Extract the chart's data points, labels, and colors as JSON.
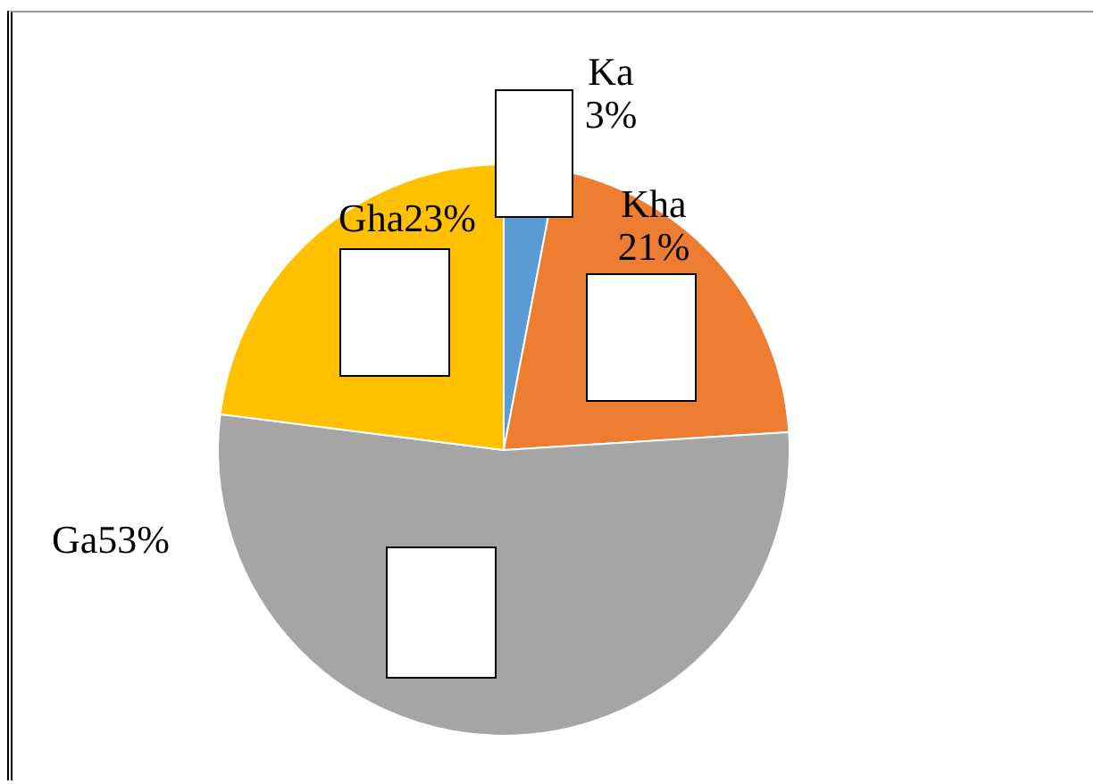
{
  "chart_data": {
    "type": "pie",
    "categories": [
      "Ka",
      "Kha",
      "Ga",
      "Gha"
    ],
    "values": [
      3,
      21,
      53,
      23
    ],
    "colors": [
      "#5b9bd5",
      "#ed7d31",
      "#a5a5a5",
      "#ffc000"
    ],
    "value_labels": [
      "3%",
      "21%",
      "53%",
      "23%"
    ],
    "legend": false
  }
}
